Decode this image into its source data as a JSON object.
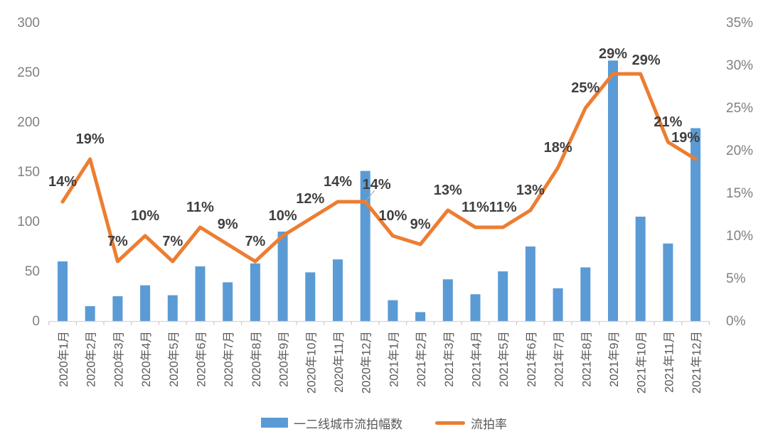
{
  "chart_data": {
    "type": "bar+line combo",
    "categories": [
      "2020年1月",
      "2020年2月",
      "2020年3月",
      "2020年4月",
      "2020年5月",
      "2020年6月",
      "2020年7月",
      "2020年8月",
      "2020年9月",
      "2020年10月",
      "2020年11月",
      "2020年12月",
      "2021年1月",
      "2021年2月",
      "2021年3月",
      "2021年4月",
      "2021年5月",
      "2021年6月",
      "2021年7月",
      "2021年8月",
      "2021年9月",
      "2021年10月",
      "2021年11月",
      "2021年12月"
    ],
    "series": [
      {
        "name": "一二线城市流拍幅数",
        "type": "bar",
        "axis": "left",
        "color": "#5B9BD5",
        "values": [
          60,
          15,
          25,
          36,
          26,
          55,
          39,
          58,
          90,
          49,
          62,
          151,
          21,
          9,
          42,
          27,
          50,
          75,
          33,
          54,
          262,
          105,
          78,
          194
        ]
      },
      {
        "name": "流拍率",
        "type": "line",
        "axis": "right",
        "color": "#ED7D31",
        "values_pct": [
          14,
          19,
          7,
          10,
          7,
          11,
          9,
          7,
          10,
          12,
          14,
          14,
          10,
          9,
          13,
          11,
          11,
          13,
          18,
          25,
          29,
          29,
          21,
          19
        ],
        "labels": [
          "14%",
          "19%",
          "7%",
          "10%",
          "7%",
          "11%",
          "9%",
          "7%",
          "10%",
          "12%",
          "14%",
          "14%",
          "10%",
          "9%",
          "13%",
          "11%",
          "11%",
          "13%",
          "18%",
          "25%",
          "29%",
          "29%",
          "21%",
          "19%"
        ]
      }
    ],
    "left_axis": {
      "min": 0,
      "max": 300,
      "ticks": [
        300,
        250,
        200,
        150,
        100,
        50,
        0
      ]
    },
    "right_axis": {
      "min": 0,
      "max": 35,
      "ticks": [
        "35%",
        "30%",
        "25%",
        "20%",
        "15%",
        "10%",
        "5%",
        "0%"
      ]
    },
    "grid": false,
    "legend_position": "bottom",
    "label_offsets": {
      "11": [
        16,
        4
      ],
      "21": [
        8,
        9
      ],
      "23": [
        -14,
        -2
      ]
    },
    "callout_index": 11
  },
  "legend": {
    "bar_label": "一二线城市流拍幅数",
    "line_label": "流拍率"
  },
  "colors": {
    "bar": "#5B9BD5",
    "line": "#ED7D31",
    "data_label": "#3F3F3F",
    "y_axis_label": "#808080",
    "x_axis_label": "#595959",
    "axis_line": "#D6D6D6",
    "tick": "#C9C9C9",
    "callout": "#A6A6A6",
    "background": "#FFFFFF"
  }
}
